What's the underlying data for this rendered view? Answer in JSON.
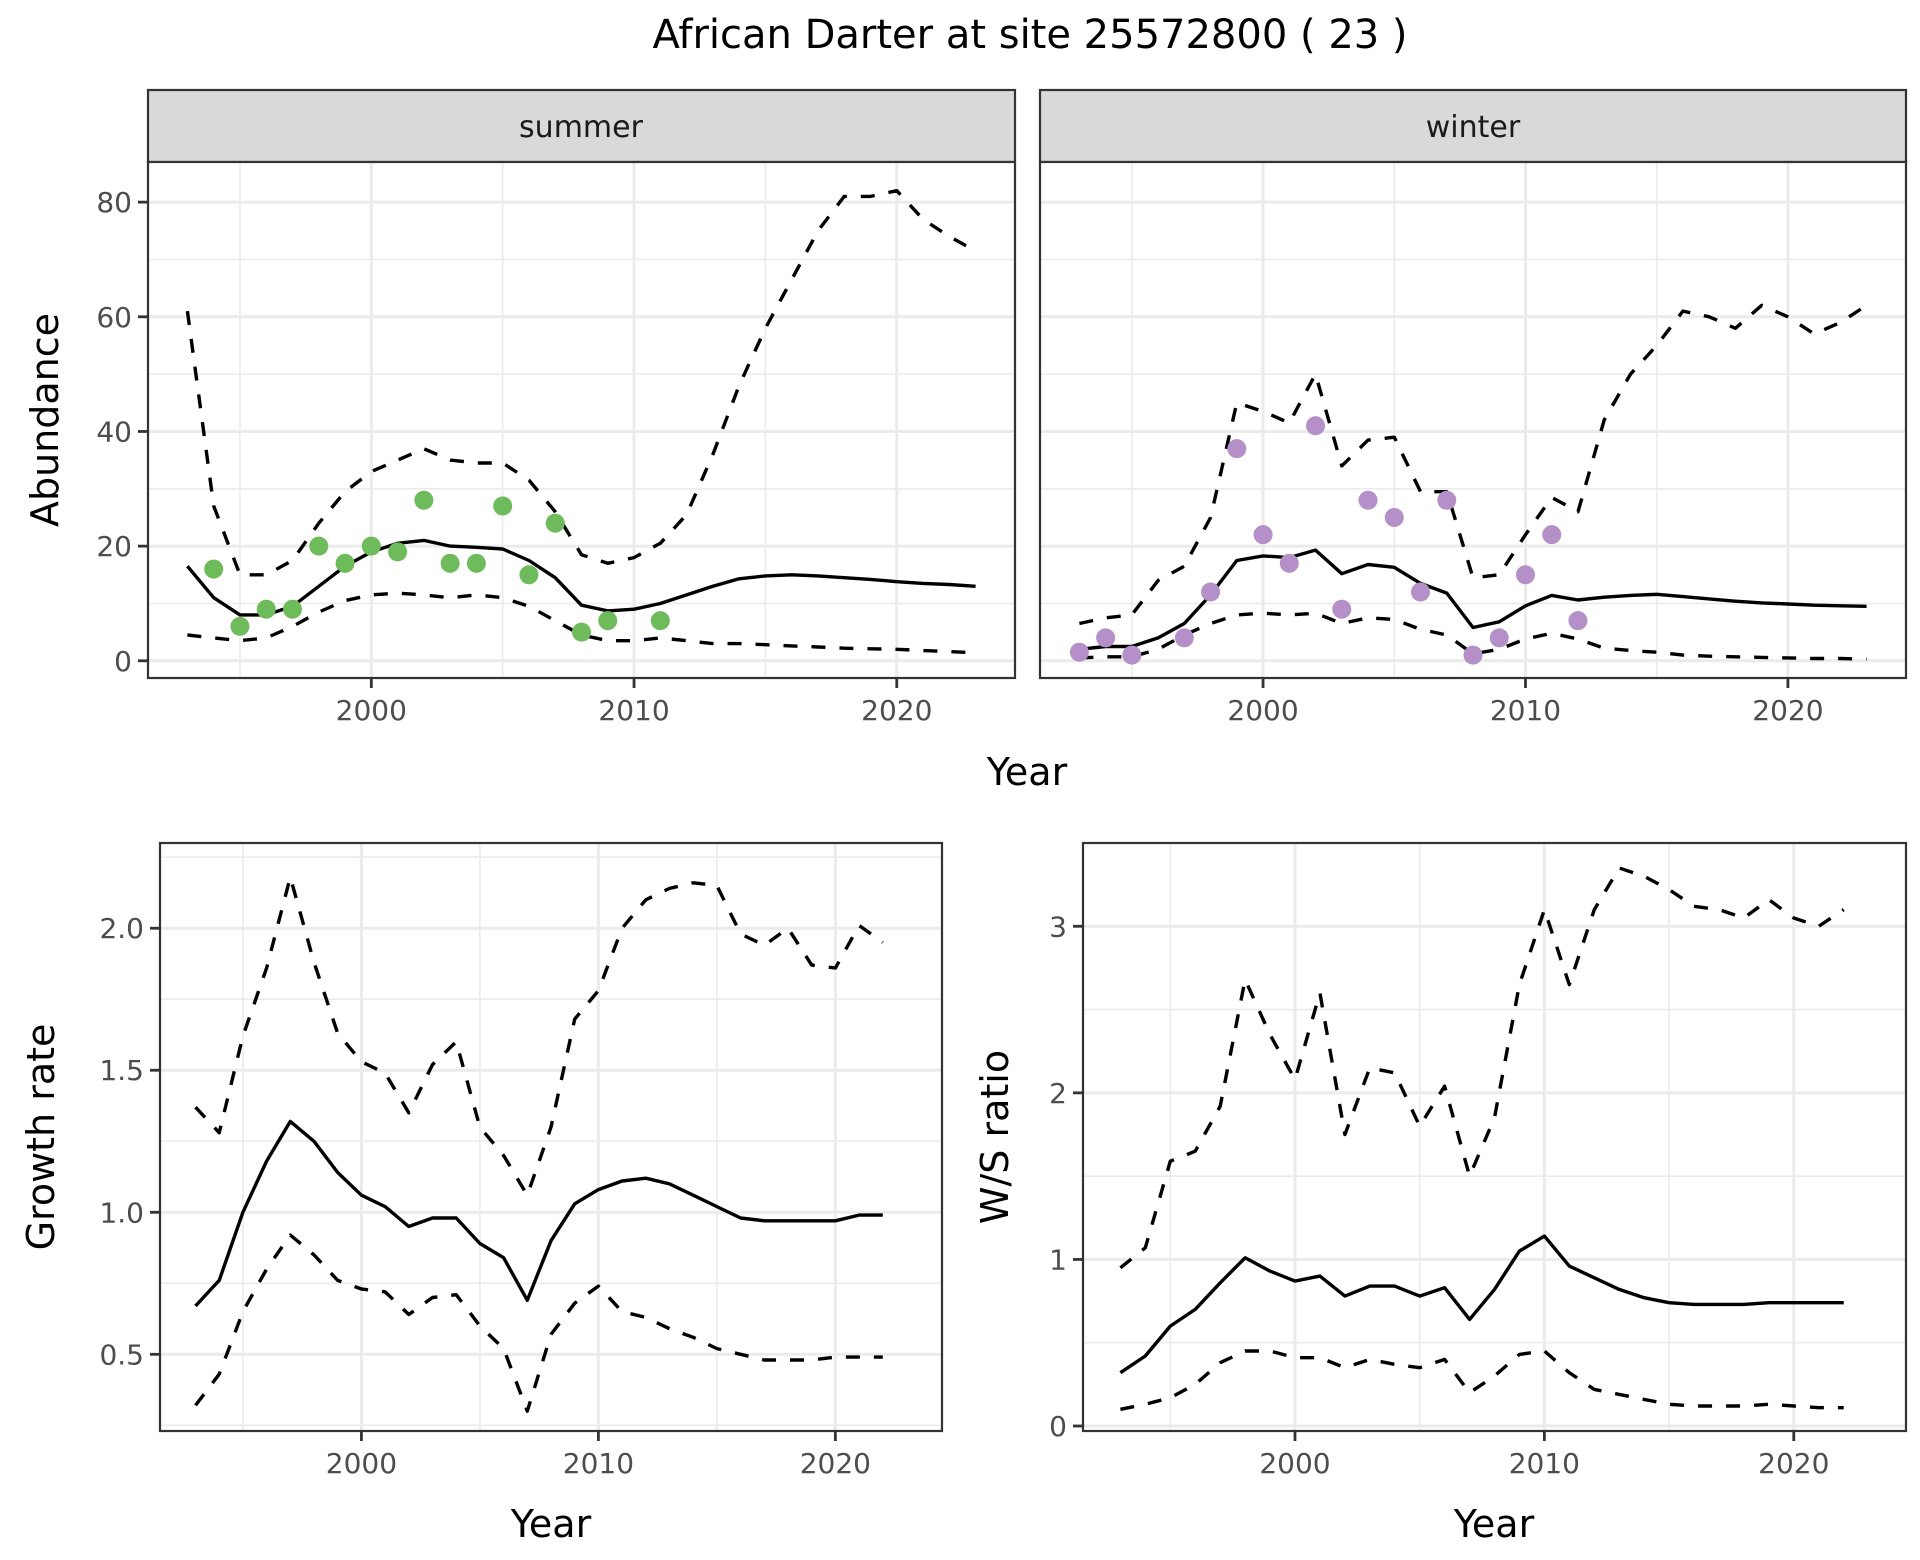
{
  "figure_title": "African Darter at site 25572800 ( 23 )",
  "colors": {
    "summer_points": "#6dbb5a",
    "winter_points": "#b48fc8",
    "lines": "#000000"
  },
  "chart_data": [
    {
      "type": "line",
      "facet": "summer",
      "title": "summer",
      "xlabel": "Year",
      "ylabel": "Abundance",
      "xlim": [
        1991.5,
        2024.5
      ],
      "ylim": [
        -3,
        87
      ],
      "xticks": [
        2000,
        2010,
        2020
      ],
      "yticks": [
        0,
        20,
        40,
        60,
        80
      ],
      "grid": true,
      "x": [
        1993,
        1994,
        1995,
        1996,
        1997,
        1998,
        1999,
        2000,
        2001,
        2002,
        2003,
        2004,
        2005,
        2006,
        2007,
        2008,
        2009,
        2010,
        2011,
        2012,
        2013,
        2014,
        2015,
        2016,
        2017,
        2018,
        2019,
        2020,
        2021,
        2022,
        2023
      ],
      "series": [
        {
          "name": "mean",
          "style": "solid",
          "values": [
            16.5,
            11,
            8,
            8,
            9.5,
            13,
            16.5,
            19,
            20.5,
            21,
            20,
            19.8,
            19.5,
            17.5,
            14.5,
            9.7,
            8.7,
            9,
            10,
            11.5,
            13,
            14.3,
            14.8,
            15,
            14.8,
            14.5,
            14.2,
            13.8,
            13.5,
            13.3,
            13
          ]
        },
        {
          "name": "upper",
          "style": "dashed",
          "values": [
            61,
            27,
            15,
            15,
            17.5,
            24,
            29.5,
            33,
            35,
            37,
            35,
            34.5,
            34.5,
            31.5,
            26,
            18.5,
            17,
            18,
            20.5,
            25.5,
            36,
            48,
            58,
            66.5,
            75,
            81,
            81,
            82,
            77,
            74,
            71.5
          ]
        },
        {
          "name": "lower",
          "style": "dashed",
          "values": [
            4.5,
            4,
            3.5,
            4,
            6,
            8.5,
            10.5,
            11.5,
            11.8,
            11.5,
            11,
            11.5,
            11,
            9.5,
            7,
            4.5,
            3.5,
            3.5,
            4,
            3.5,
            3,
            3,
            2.8,
            2.6,
            2.4,
            2.2,
            2.1,
            2,
            1.8,
            1.6,
            1.4
          ]
        }
      ],
      "points": {
        "name": "observed",
        "x": [
          1994,
          1995,
          1996,
          1997,
          1998,
          1999,
          2000,
          2001,
          2002,
          2003,
          2004,
          2005,
          2006,
          2007,
          2008,
          2009,
          2011
        ],
        "y": [
          16,
          6,
          9,
          9,
          20,
          17,
          20,
          19,
          28,
          17,
          17,
          27,
          15,
          24,
          5,
          7,
          7
        ]
      }
    },
    {
      "type": "line",
      "facet": "winter",
      "title": "winter",
      "xlabel": "Year",
      "ylabel": "Abundance",
      "xlim": [
        1991.5,
        2024.5
      ],
      "ylim": [
        -3,
        87
      ],
      "xticks": [
        2000,
        2010,
        2020
      ],
      "yticks": [
        0,
        20,
        40,
        60,
        80
      ],
      "grid": true,
      "x": [
        1993,
        1994,
        1995,
        1996,
        1997,
        1998,
        1999,
        2000,
        2001,
        2002,
        2003,
        2004,
        2005,
        2006,
        2007,
        2008,
        2009,
        2010,
        2011,
        2012,
        2013,
        2014,
        2015,
        2016,
        2017,
        2018,
        2019,
        2020,
        2021,
        2022,
        2023
      ],
      "series": [
        {
          "name": "mean",
          "style": "solid",
          "values": [
            2,
            2.5,
            2.5,
            4,
            6.5,
            11.5,
            17.5,
            18.3,
            18,
            19.3,
            15.2,
            16.8,
            16.3,
            13.5,
            11.8,
            5.8,
            6.8,
            9.6,
            11.4,
            10.6,
            11.1,
            11.4,
            11.6,
            11.2,
            10.8,
            10.4,
            10.1,
            9.9,
            9.7,
            9.6,
            9.5
          ]
        },
        {
          "name": "upper",
          "style": "dashed",
          "values": [
            6.5,
            7.5,
            8,
            14,
            16.5,
            25,
            45,
            43.5,
            41.5,
            50,
            34,
            38.5,
            39,
            29.5,
            29.5,
            14.5,
            15,
            22,
            28.5,
            26,
            42,
            50,
            55,
            61,
            60,
            58,
            62,
            60,
            57,
            59,
            62
          ]
        },
        {
          "name": "lower",
          "style": "dashed",
          "values": [
            0.5,
            0.7,
            0.7,
            2,
            4.5,
            6.5,
            8,
            8.3,
            8,
            8.3,
            6.5,
            7.5,
            7.2,
            5.5,
            4.5,
            1.2,
            2,
            3.8,
            4.8,
            3.8,
            2.2,
            1.8,
            1.5,
            1,
            0.8,
            0.7,
            0.6,
            0.5,
            0.4,
            0.4,
            0.3
          ]
        }
      ],
      "points": {
        "name": "observed",
        "x": [
          1993,
          1994,
          1995,
          1997,
          1998,
          1999,
          2000,
          2001,
          2002,
          2003,
          2004,
          2005,
          2006,
          2007,
          2008,
          2009,
          2010,
          2011,
          2012
        ],
        "y": [
          1.5,
          4,
          1,
          4,
          12,
          37,
          22,
          17,
          41,
          9,
          28,
          25,
          12,
          28,
          1,
          4,
          15,
          22,
          7
        ]
      }
    },
    {
      "type": "line",
      "title": "",
      "xlabel": "Year",
      "ylabel": "Growth rate",
      "xlim": [
        1991.5,
        2024.5
      ],
      "ylim": [
        0.23,
        2.3
      ],
      "xticks": [
        2000,
        2010,
        2020
      ],
      "yticks": [
        0.5,
        1.0,
        1.5,
        2.0
      ],
      "ytick_labels": [
        "0.5",
        "1.0",
        "1.5",
        "2.0"
      ],
      "grid": true,
      "x": [
        1993,
        1994,
        1995,
        1996,
        1997,
        1998,
        1999,
        2000,
        2001,
        2002,
        2003,
        2004,
        2005,
        2006,
        2007,
        2008,
        2009,
        2010,
        2011,
        2012,
        2013,
        2014,
        2015,
        2016,
        2017,
        2018,
        2019,
        2020,
        2021,
        2022
      ],
      "series": [
        {
          "name": "mean",
          "style": "solid",
          "values": [
            0.67,
            0.76,
            1.0,
            1.18,
            1.32,
            1.25,
            1.14,
            1.06,
            1.02,
            0.95,
            0.98,
            0.98,
            0.89,
            0.84,
            0.69,
            0.9,
            1.03,
            1.08,
            1.11,
            1.12,
            1.1,
            1.06,
            1.02,
            0.98,
            0.97,
            0.97,
            0.97,
            0.97,
            0.99,
            0.99
          ]
        },
        {
          "name": "upper",
          "style": "dashed",
          "values": [
            1.37,
            1.28,
            1.62,
            1.86,
            2.18,
            1.88,
            1.63,
            1.53,
            1.49,
            1.35,
            1.52,
            1.6,
            1.3,
            1.2,
            1.06,
            1.3,
            1.68,
            1.78,
            2.0,
            2.1,
            2.14,
            2.16,
            2.15,
            1.98,
            1.94,
            2.0,
            1.87,
            1.86,
            2.01,
            1.95
          ]
        },
        {
          "name": "lower",
          "style": "dashed",
          "values": [
            0.32,
            0.43,
            0.65,
            0.8,
            0.92,
            0.85,
            0.76,
            0.73,
            0.72,
            0.64,
            0.7,
            0.71,
            0.6,
            0.52,
            0.3,
            0.57,
            0.68,
            0.74,
            0.65,
            0.63,
            0.59,
            0.56,
            0.52,
            0.5,
            0.48,
            0.48,
            0.48,
            0.49,
            0.49,
            0.49
          ]
        }
      ]
    },
    {
      "type": "line",
      "title": "",
      "xlabel": "Year",
      "ylabel": "W/S ratio",
      "xlim": [
        1991.5,
        2024.5
      ],
      "ylim": [
        -0.03,
        3.5
      ],
      "xticks": [
        2000,
        2010,
        2020
      ],
      "yticks": [
        0,
        1,
        2,
        3
      ],
      "ytick_labels": [
        "0",
        "1",
        "2",
        "3"
      ],
      "grid": true,
      "x": [
        1993,
        1994,
        1995,
        1996,
        1997,
        1998,
        1999,
        2000,
        2001,
        2002,
        2003,
        2004,
        2005,
        2006,
        2007,
        2008,
        2009,
        2010,
        2011,
        2012,
        2013,
        2014,
        2015,
        2016,
        2017,
        2018,
        2019,
        2020,
        2021,
        2022
      ],
      "series": [
        {
          "name": "mean",
          "style": "solid",
          "values": [
            0.32,
            0.42,
            0.6,
            0.7,
            0.86,
            1.01,
            0.93,
            0.87,
            0.9,
            0.78,
            0.84,
            0.84,
            0.78,
            0.83,
            0.64,
            0.82,
            1.05,
            1.14,
            0.96,
            0.89,
            0.82,
            0.77,
            0.74,
            0.73,
            0.73,
            0.73,
            0.74,
            0.74,
            0.74,
            0.74
          ]
        },
        {
          "name": "upper",
          "style": "dashed",
          "values": [
            0.95,
            1.07,
            1.59,
            1.65,
            1.92,
            2.68,
            2.35,
            2.08,
            2.6,
            1.75,
            2.15,
            2.12,
            1.8,
            2.04,
            1.5,
            1.85,
            2.65,
            3.1,
            2.65,
            3.1,
            3.35,
            3.3,
            3.22,
            3.12,
            3.1,
            3.05,
            3.16,
            3.05,
            3.0,
            3.1
          ]
        },
        {
          "name": "lower",
          "style": "dashed",
          "values": [
            0.1,
            0.13,
            0.17,
            0.25,
            0.38,
            0.45,
            0.45,
            0.41,
            0.41,
            0.35,
            0.4,
            0.37,
            0.35,
            0.4,
            0.2,
            0.3,
            0.43,
            0.45,
            0.32,
            0.22,
            0.19,
            0.16,
            0.13,
            0.12,
            0.12,
            0.12,
            0.13,
            0.12,
            0.11,
            0.11
          ]
        }
      ]
    }
  ]
}
